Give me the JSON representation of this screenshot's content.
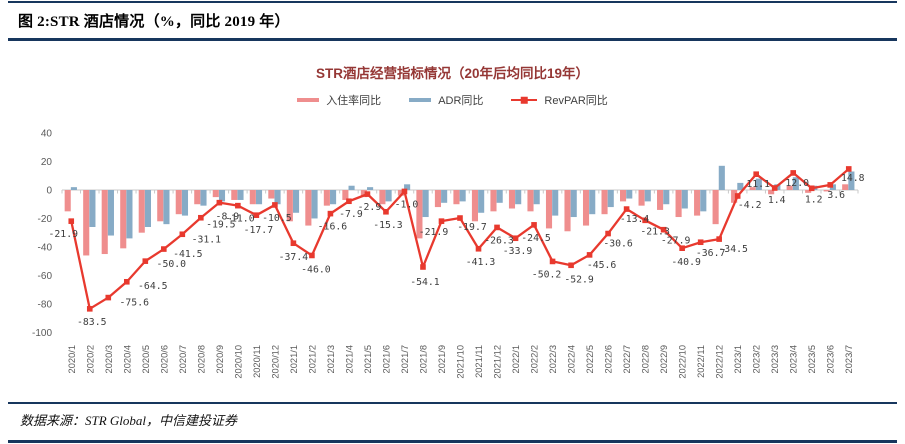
{
  "page": {
    "figure_title": "图 2:STR 酒店情况（%，同比 2019 年）",
    "source_note": "数据来源：STR Global，中信建投证券"
  },
  "colors": {
    "rule_navy": "#17365D",
    "occupancy_bar": "#EF8E8E",
    "adr_bar": "#87ABC6",
    "revpar_line": "#E8392E",
    "chart_title_red": "#953735",
    "axis_text_gray": "#595959",
    "data_label_gray": "#3D3D3D"
  },
  "chart_data": {
    "type": "bar",
    "subtype": "combo bar+line, monthly YoY vs 2019 (%)",
    "title": "STR酒店经营指标情况（20年后均同比19年）",
    "legend_position": "top",
    "grid": false,
    "ylim": [
      -100,
      40
    ],
    "y_ticks": [
      40,
      20,
      0,
      -20,
      -40,
      -60,
      -80,
      -100
    ],
    "categories": [
      "2020/1",
      "2020/2",
      "2020/3",
      "2020/4",
      "2020/5",
      "2020/6",
      "2020/7",
      "2020/8",
      "2020/9",
      "2020/10",
      "2020/11",
      "2020/12",
      "2021/1",
      "2021/2",
      "2021/3",
      "2021/4",
      "2021/5",
      "2021/6",
      "2021/7",
      "2021/8",
      "2021/9",
      "2021/10",
      "2021/11",
      "2021/12",
      "2022/1",
      "2022/2",
      "2022/3",
      "2022/4",
      "2022/5",
      "2022/6",
      "2022/7",
      "2022/8",
      "2022/9",
      "2022/10",
      "2022/11",
      "2022/12",
      "2023/1",
      "2023/2",
      "2023/3",
      "2023/4",
      "2023/5",
      "2023/6",
      "2023/7"
    ],
    "series": [
      {
        "name": "入住率同比",
        "type": "bar",
        "values": [
          -15,
          -46,
          -45,
          -41,
          -30,
          -22,
          -17,
          -10,
          -5,
          -7,
          -10,
          -6,
          -22,
          -25,
          -11,
          -7,
          -5,
          -10,
          -4,
          -34,
          -12,
          -10,
          -22,
          -15,
          -13,
          -15,
          -27,
          -29,
          -25,
          -17,
          -8,
          -11,
          -14,
          -19,
          -18,
          -24,
          -9,
          2,
          -3,
          3,
          -2,
          -1,
          4
        ],
        "note": "estimated from bar heights"
      },
      {
        "name": "ADR同比",
        "type": "bar",
        "values": [
          2,
          -26,
          -32,
          -34,
          -26,
          -24,
          -18,
          -11,
          -8,
          -7,
          -10,
          -10,
          -16,
          -20,
          -10,
          3,
          2,
          -8,
          4,
          -19,
          -9,
          -8,
          -16,
          -9,
          -10,
          -10,
          -18,
          -19,
          -17,
          -12,
          -6,
          -8,
          -10,
          -13,
          -15,
          17,
          5,
          8,
          4,
          9,
          3,
          4,
          13
        ],
        "note": "estimated from bar heights"
      },
      {
        "name": "RevPAR同比",
        "type": "line",
        "labels_shown": true,
        "values": [
          -21.9,
          -83.5,
          -75.6,
          -64.5,
          -50.0,
          -41.5,
          -31.1,
          -19.5,
          -8.9,
          -11.0,
          -17.7,
          -10.5,
          -37.4,
          -46.0,
          -16.6,
          -7.9,
          -2.9,
          -15.3,
          -1.0,
          -54.1,
          -21.9,
          -19.7,
          -41.3,
          -26.3,
          -33.9,
          -24.5,
          -50.2,
          -52.9,
          -45.6,
          -30.6,
          -13.4,
          -21.3,
          -27.9,
          -40.9,
          -36.7,
          -34.5,
          -4.2,
          11.1,
          1.4,
          12.0,
          1.2,
          3.6,
          14.8
        ]
      }
    ]
  }
}
